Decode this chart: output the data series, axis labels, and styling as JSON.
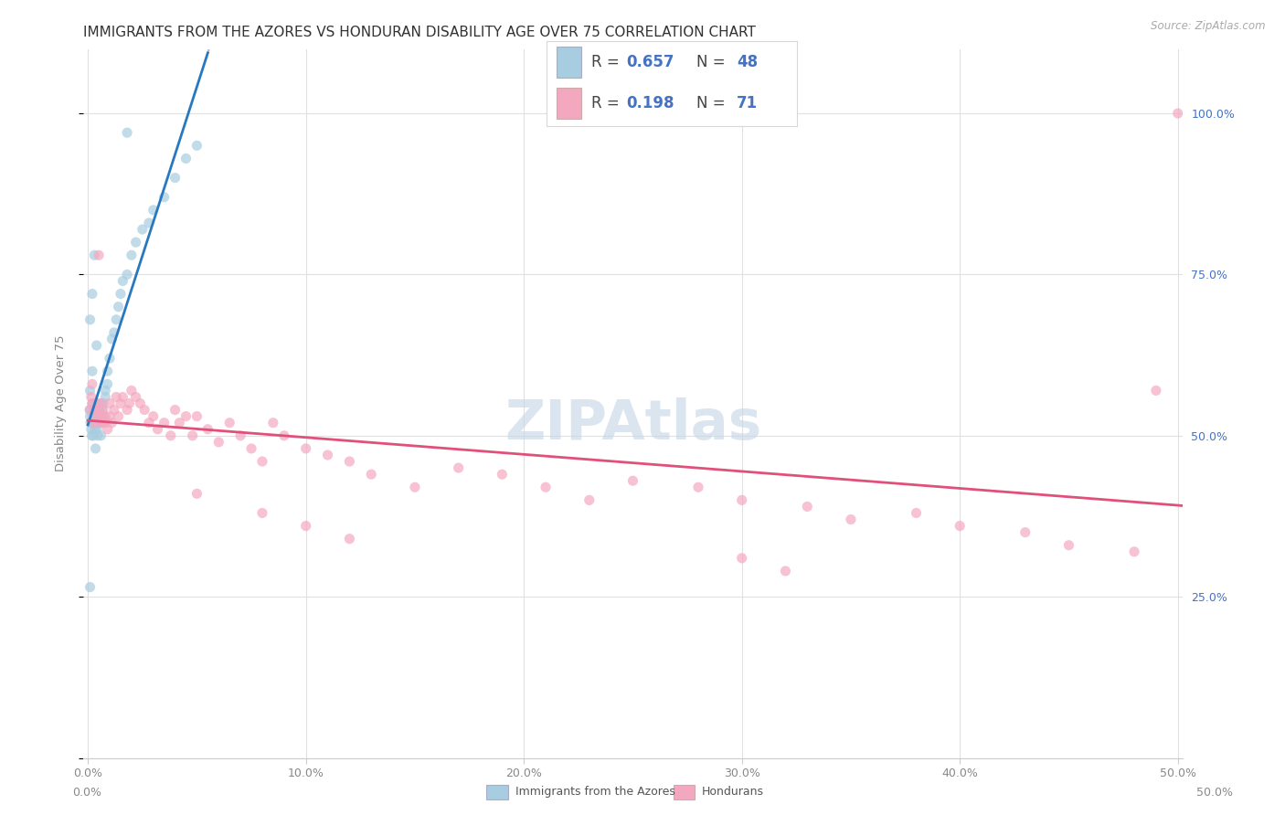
{
  "title": "IMMIGRANTS FROM THE AZORES VS HONDURAN DISABILITY AGE OVER 75 CORRELATION CHART",
  "source": "Source: ZipAtlas.com",
  "ylabel": "Disability Age Over 75",
  "legend_r1": "0.657",
  "legend_n1": "48",
  "legend_r2": "0.198",
  "legend_n2": "71",
  "blue_scatter_color": "#a8cce0",
  "pink_scatter_color": "#f4a8c0",
  "blue_line_color": "#2878c0",
  "pink_line_color": "#e0507a",
  "dash_line_color": "#b8b8b8",
  "title_color": "#333333",
  "axis_label_color": "#888888",
  "right_axis_color": "#4472c4",
  "legend_value_color": "#4472c4",
  "grid_color": "#e0e0e0",
  "legend_text_color": "#444444",
  "background_color": "#ffffff",
  "watermark_color": "#c8d8e8",
  "xlim_min": -0.002,
  "xlim_max": 0.502,
  "ylim_min": 0.0,
  "ylim_max": 1.1,
  "ytick_vals": [
    0.0,
    0.25,
    0.5,
    0.75,
    1.0
  ],
  "right_ytick_labels": [
    "25.0%",
    "50.0%",
    "75.0%",
    "100.0%"
  ],
  "xtick_vals": [
    0.0,
    0.1,
    0.2,
    0.3,
    0.4,
    0.5
  ],
  "xtick_labels": [
    "0.0%",
    "10.0%",
    "20.0%",
    "30.0%",
    "40.0%",
    "50.0%"
  ],
  "azores_x": [
    0.0008,
    0.001,
    0.0012,
    0.0015,
    0.0018,
    0.002,
    0.002,
    0.0022,
    0.0025,
    0.003,
    0.003,
    0.0032,
    0.0035,
    0.004,
    0.004,
    0.0042,
    0.0045,
    0.005,
    0.005,
    0.0052,
    0.0055,
    0.006,
    0.006,
    0.0065,
    0.007,
    0.007,
    0.008,
    0.008,
    0.009,
    0.009,
    0.01,
    0.011,
    0.012,
    0.013,
    0.014,
    0.015,
    0.016,
    0.018,
    0.02,
    0.022,
    0.025,
    0.028,
    0.03,
    0.035,
    0.04,
    0.045,
    0.05,
    0.018
  ],
  "azores_y": [
    0.54,
    0.53,
    0.52,
    0.51,
    0.5,
    0.52,
    0.55,
    0.53,
    0.5,
    0.52,
    0.54,
    0.51,
    0.48,
    0.52,
    0.53,
    0.51,
    0.5,
    0.54,
    0.52,
    0.53,
    0.55,
    0.52,
    0.5,
    0.54,
    0.55,
    0.53,
    0.56,
    0.57,
    0.58,
    0.6,
    0.62,
    0.65,
    0.66,
    0.68,
    0.7,
    0.72,
    0.74,
    0.75,
    0.78,
    0.8,
    0.82,
    0.83,
    0.85,
    0.87,
    0.9,
    0.93,
    0.95,
    0.97
  ],
  "honduran_x": [
    0.001,
    0.0015,
    0.002,
    0.002,
    0.003,
    0.003,
    0.004,
    0.004,
    0.005,
    0.005,
    0.005,
    0.006,
    0.006,
    0.007,
    0.007,
    0.008,
    0.008,
    0.009,
    0.01,
    0.01,
    0.011,
    0.012,
    0.013,
    0.014,
    0.015,
    0.016,
    0.018,
    0.019,
    0.02,
    0.022,
    0.024,
    0.026,
    0.028,
    0.03,
    0.032,
    0.035,
    0.038,
    0.04,
    0.042,
    0.045,
    0.048,
    0.05,
    0.055,
    0.06,
    0.065,
    0.07,
    0.075,
    0.08,
    0.085,
    0.09,
    0.1,
    0.11,
    0.12,
    0.13,
    0.15,
    0.17,
    0.19,
    0.21,
    0.23,
    0.25,
    0.28,
    0.3,
    0.33,
    0.35,
    0.38,
    0.4,
    0.43,
    0.45,
    0.48,
    0.49,
    0.5
  ],
  "honduran_y": [
    0.54,
    0.56,
    0.55,
    0.58,
    0.52,
    0.54,
    0.53,
    0.55,
    0.52,
    0.54,
    0.78,
    0.53,
    0.55,
    0.52,
    0.54,
    0.52,
    0.53,
    0.51,
    0.53,
    0.55,
    0.52,
    0.54,
    0.56,
    0.53,
    0.55,
    0.56,
    0.54,
    0.55,
    0.57,
    0.56,
    0.55,
    0.54,
    0.52,
    0.53,
    0.51,
    0.52,
    0.5,
    0.54,
    0.52,
    0.53,
    0.5,
    0.53,
    0.51,
    0.49,
    0.52,
    0.5,
    0.48,
    0.46,
    0.52,
    0.5,
    0.48,
    0.47,
    0.46,
    0.44,
    0.42,
    0.45,
    0.44,
    0.42,
    0.4,
    0.43,
    0.42,
    0.4,
    0.39,
    0.37,
    0.38,
    0.36,
    0.35,
    0.33,
    0.32,
    0.57,
    1.0
  ],
  "marker_size": 65,
  "alpha": 0.7,
  "title_fontsize": 11,
  "axis_fontsize": 9.5,
  "tick_fontsize": 9,
  "legend_fontsize": 12,
  "source_fontsize": 8.5
}
